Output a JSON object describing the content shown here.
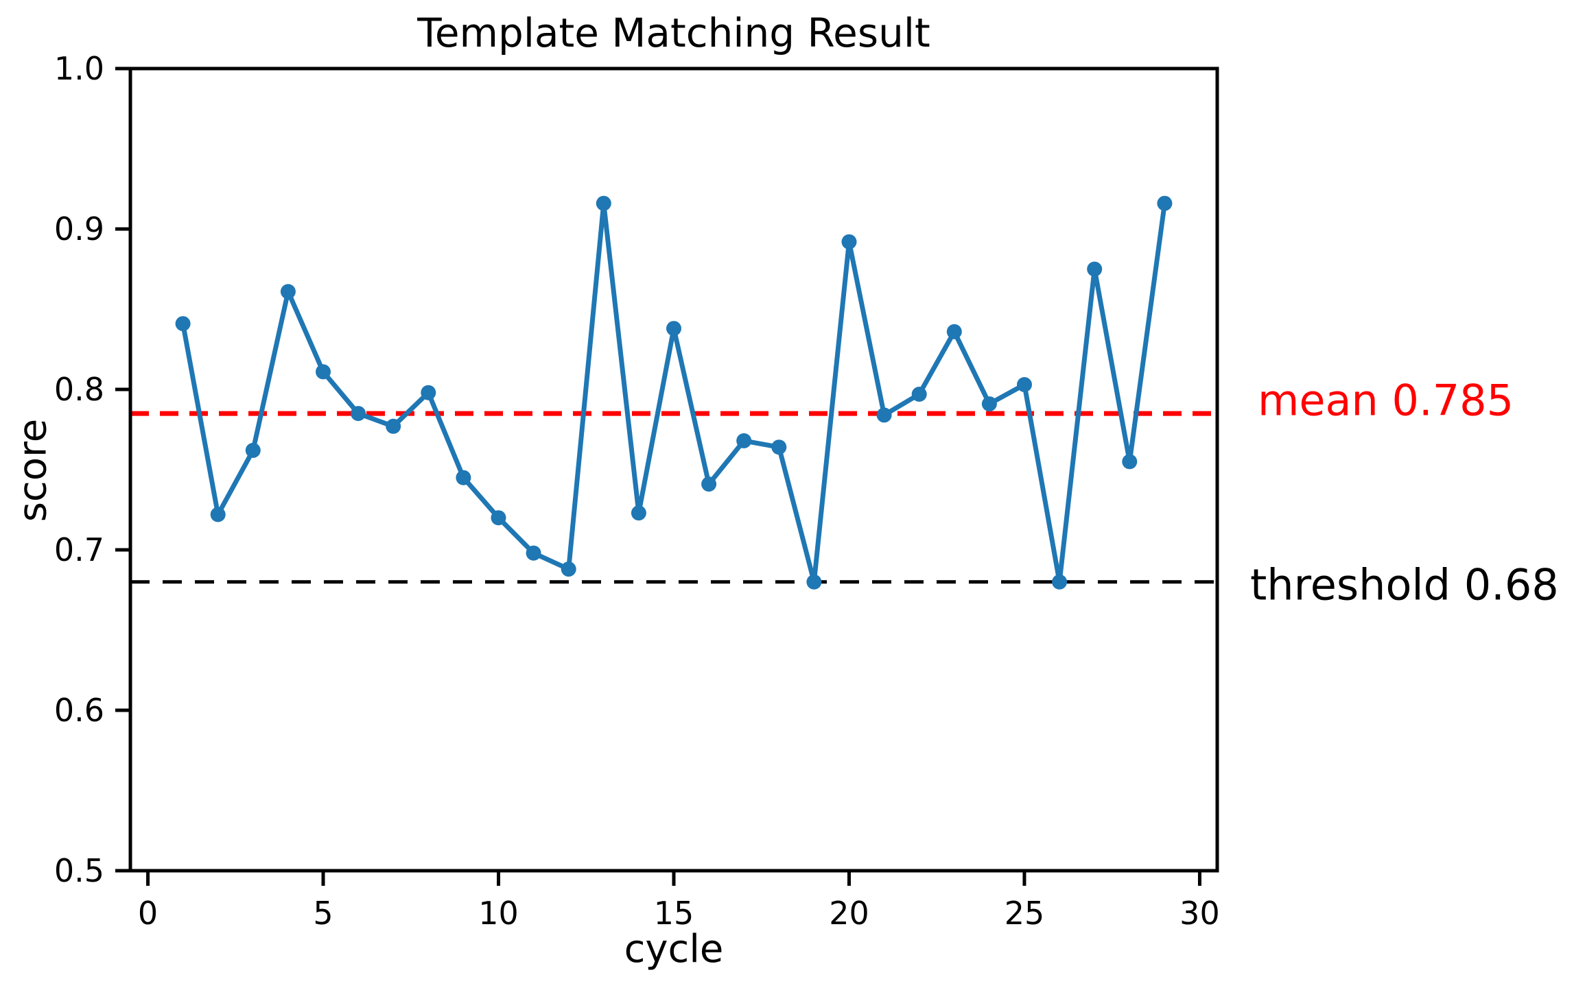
{
  "figure": {
    "title": "Template Matching Result",
    "xlabel": "cycle",
    "ylabel": "score"
  },
  "annotations": {
    "mean_label": "mean 0.785",
    "threshold_label": "threshold 0.68"
  },
  "colors": {
    "series_line": "#1f77b4",
    "mean_line": "#ff0000",
    "threshold_line": "#000000",
    "axis": "#000000",
    "background": "#ffffff"
  },
  "chart_data": {
    "type": "line",
    "title": "Template Matching Result",
    "xlabel": "cycle",
    "ylabel": "score",
    "x": [
      1,
      2,
      3,
      4,
      5,
      6,
      7,
      8,
      9,
      10,
      11,
      12,
      13,
      14,
      15,
      16,
      17,
      18,
      19,
      20,
      21,
      22,
      23,
      24,
      25,
      26,
      27,
      28,
      29
    ],
    "series": [
      {
        "name": "score",
        "color": "#1f77b4",
        "marker": "circle",
        "values": [
          0.841,
          0.722,
          0.762,
          0.861,
          0.811,
          0.785,
          0.777,
          0.798,
          0.745,
          0.72,
          0.698,
          0.688,
          0.916,
          0.723,
          0.838,
          0.741,
          0.768,
          0.764,
          0.68,
          0.892,
          0.784,
          0.797,
          0.836,
          0.791,
          0.803,
          0.68,
          0.875,
          0.755,
          0.916
        ]
      }
    ],
    "reference_lines": [
      {
        "name": "mean",
        "value": 0.785,
        "label": "mean 0.785",
        "color": "#ff0000",
        "style": "dashed"
      },
      {
        "name": "threshold",
        "value": 0.68,
        "label": "threshold 0.68",
        "color": "#000000",
        "style": "dashed"
      }
    ],
    "xlim": [
      -0.5,
      30.5
    ],
    "ylim": [
      0.5,
      1.0
    ],
    "xticks": [
      0,
      5,
      10,
      15,
      20,
      25,
      30
    ],
    "yticks": [
      0.5,
      0.6,
      0.7,
      0.8,
      0.9,
      1.0
    ],
    "ytick_decimals": 1,
    "grid": false,
    "legend": "none"
  }
}
